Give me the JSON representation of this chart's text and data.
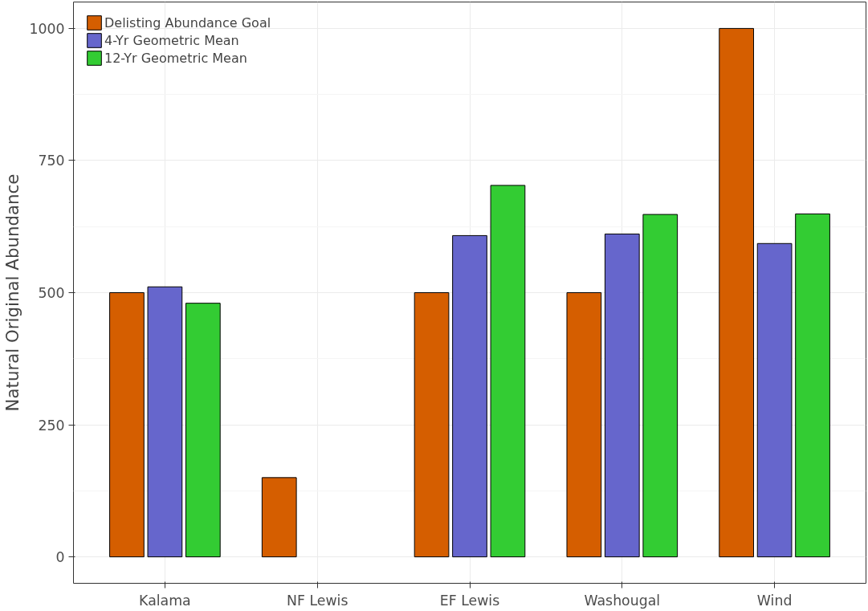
{
  "chart_data": {
    "type": "bar",
    "ylabel": "Natural Original Abundance",
    "categories": [
      "Kalama",
      "NF Lewis",
      "EF Lewis",
      "Washougal",
      "Wind"
    ],
    "series": [
      {
        "name": "Delisting Abundance Goal",
        "color": "#d55e00",
        "values": [
          500,
          150,
          500,
          500,
          1000
        ]
      },
      {
        "name": "4-Yr Geometric Mean",
        "color": "#6666cc",
        "values": [
          511,
          null,
          608,
          611,
          593
        ]
      },
      {
        "name": "12-Yr Geometric Mean",
        "color": "#33cc33",
        "values": [
          480,
          null,
          703,
          648,
          649
        ]
      }
    ],
    "ylim": [
      -50,
      1050
    ],
    "yticks": [
      0,
      250,
      500,
      750,
      1000
    ],
    "grid": true,
    "legend": "top left"
  }
}
